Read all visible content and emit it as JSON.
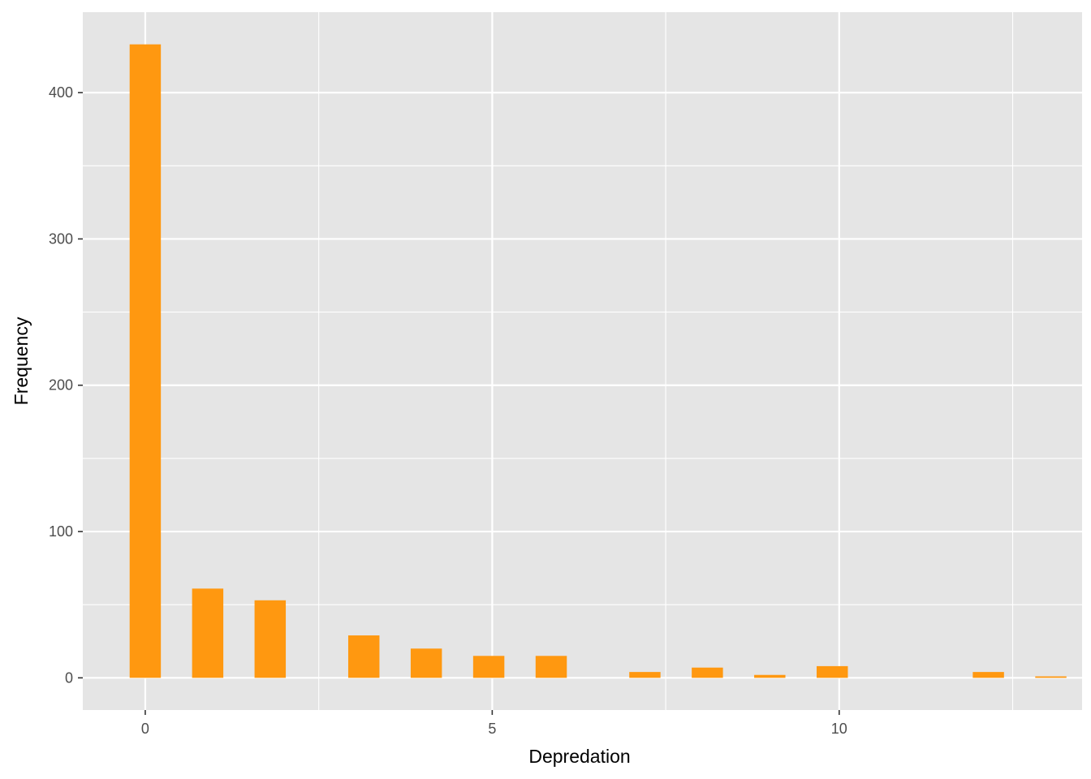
{
  "chart_data": {
    "type": "bar",
    "xlabel": "Depredation",
    "ylabel": "Frequency",
    "bar_color": "#FF9810",
    "panel_color": "#E5E5E5",
    "grid_color": "#FFFFFF",
    "grid": true,
    "xlim": [
      -0.9,
      13.5
    ],
    "ylim": [
      -22,
      455
    ],
    "x_ticks": [
      0,
      5,
      10
    ],
    "x_tick_labels": [
      "0",
      "5",
      "10"
    ],
    "y_ticks": [
      0,
      100,
      200,
      300,
      400
    ],
    "y_tick_labels": [
      "0",
      "100",
      "200",
      "300",
      "400"
    ],
    "bar_width": 0.45,
    "x": [
      0,
      0.9,
      1.8,
      3.15,
      4.05,
      4.95,
      5.85,
      7.2,
      8.1,
      9.0,
      9.9,
      12.15,
      13.05
    ],
    "values": [
      433,
      61,
      53,
      29,
      20,
      15,
      15,
      4,
      7,
      2,
      8,
      4,
      1
    ]
  }
}
